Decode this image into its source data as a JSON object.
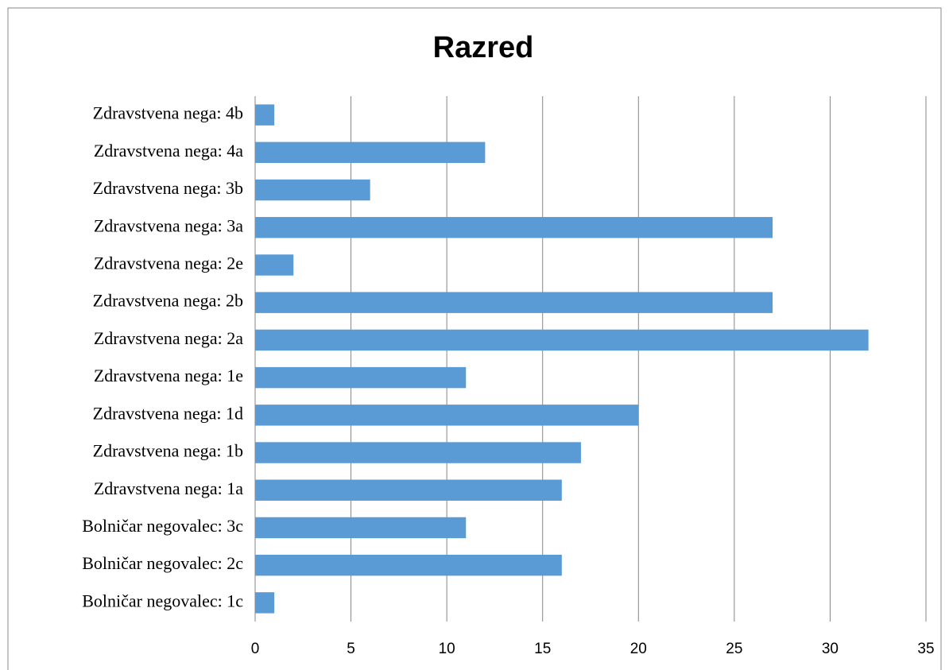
{
  "chart_data": {
    "type": "bar",
    "orientation": "horizontal",
    "title": "Razred",
    "categories": [
      "Zdravstvena nega: 4b",
      "Zdravstvena nega: 4a",
      "Zdravstvena nega: 3b",
      "Zdravstvena nega: 3a",
      "Zdravstvena nega: 2e",
      "Zdravstvena nega: 2b",
      "Zdravstvena nega: 2a",
      "Zdravstvena nega: 1e",
      "Zdravstvena nega: 1d",
      "Zdravstvena nega: 1b",
      "Zdravstvena nega: 1a",
      "Bolničar negovalec: 3c",
      "Bolničar negovalec: 2c",
      "Bolničar negovalec: 1c"
    ],
    "values": [
      1,
      12,
      6,
      27,
      2,
      27,
      32,
      11,
      20,
      17,
      16,
      11,
      16,
      1
    ],
    "color": "#5b9bd5",
    "xlim": [
      0,
      35
    ],
    "xticks": [
      0,
      5,
      10,
      15,
      20,
      25,
      30,
      35
    ],
    "grid": true
  }
}
